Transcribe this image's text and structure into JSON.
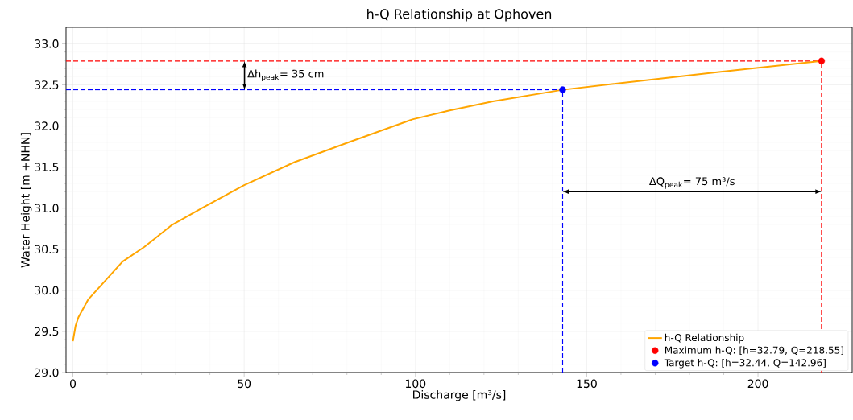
{
  "chart_data": {
    "type": "line",
    "title": "h-Q Relationship at Ophoven",
    "xlabel": "Discharge [m³/s]",
    "ylabel": "Water Height [m +NHN]",
    "series": [
      {
        "name": "h-Q Relationship",
        "color": "#ffa500",
        "x": [
          0,
          0.8,
          1.6,
          4.5,
          14.5,
          20.9,
          28.7,
          38.1,
          50,
          64.7,
          80.4,
          99.1,
          110,
          122.6,
          142.96,
          165.7,
          189.1,
          218.55
        ],
        "values": [
          29.38,
          29.57,
          29.67,
          29.89,
          30.35,
          30.53,
          30.79,
          31.01,
          31.28,
          31.56,
          31.8,
          32.08,
          32.19,
          32.3,
          32.44,
          32.55,
          32.66,
          32.79
        ]
      },
      {
        "name": "Maximum h-Q: [h=32.79, Q=218.55]",
        "type": "scatter",
        "marker": "circle",
        "color": "#ff0000",
        "x": [
          218.55
        ],
        "values": [
          32.79
        ]
      },
      {
        "name": "Target h-Q: [h=32.44, Q=142.96]",
        "type": "scatter",
        "marker": "circle",
        "color": "#0000ff",
        "x": [
          142.96
        ],
        "values": [
          32.44
        ]
      }
    ],
    "ref_lines": [
      {
        "axis": "y",
        "value": 32.79,
        "color": "#ff0000",
        "line_style": "dashed"
      },
      {
        "axis": "y",
        "value": 32.44,
        "color": "#0000ff",
        "line_style": "dashed"
      },
      {
        "axis": "x",
        "value": 142.96,
        "color": "#0000ff",
        "line_style": "dashed"
      },
      {
        "axis": "x",
        "value": 218.55,
        "color": "#ff0000",
        "line_style": "dashed"
      }
    ],
    "annotations": [
      "Δh$_{peak}$= 35 cm",
      "ΔQ$_{peak}$= 75 m³/s"
    ],
    "xlim": [
      -2,
      227.5
    ],
    "ylim": [
      29.0,
      33.2
    ],
    "xticks": [
      0,
      50,
      100,
      150,
      200
    ],
    "yticks": [
      {
        "value": 29.0,
        "label": "29.0"
      },
      {
        "value": 29.5,
        "label": "29.5"
      },
      {
        "value": 30.0,
        "label": "30.0"
      },
      {
        "value": 30.5,
        "label": "30.5"
      },
      {
        "value": 31.0,
        "label": "31.0"
      },
      {
        "value": 31.5,
        "label": "31.5"
      },
      {
        "value": 32.0,
        "label": "32.0"
      },
      {
        "value": 32.5,
        "label": "32.5"
      },
      {
        "value": 33.0,
        "label": "33.0"
      }
    ],
    "grid": true,
    "legend": "bottom right",
    "line_style": "solid"
  }
}
